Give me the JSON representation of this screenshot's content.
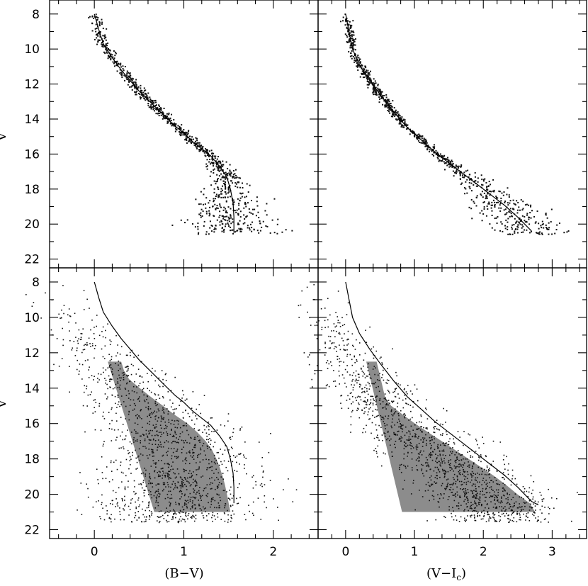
{
  "figure": {
    "xlabel_left": "(B−V)",
    "xlabel_right_main": "(V−I",
    "xlabel_right_sub": "c",
    "xlabel_right_close": ")",
    "ylabel": "V"
  },
  "chart_data": [
    {
      "type": "scatter",
      "panel": "top-left",
      "xlabel": "",
      "ylabel": "V",
      "xlim": [
        -0.5,
        2.5
      ],
      "ylim": [
        22.5,
        7.2
      ],
      "y_inverted": true,
      "y_ticks": [
        8,
        10,
        12,
        14,
        16,
        18,
        20,
        22
      ],
      "sequence_line": {
        "x": [
          0.0,
          0.05,
          0.1,
          0.2,
          0.3,
          0.4,
          0.5,
          0.6,
          0.7,
          0.8,
          0.9,
          1.0,
          1.1,
          1.2,
          1.3,
          1.4,
          1.48,
          1.52,
          1.55,
          1.56,
          1.56
        ],
        "y": [
          8.0,
          8.9,
          9.7,
          10.5,
          11.2,
          11.8,
          12.4,
          12.9,
          13.4,
          13.9,
          14.4,
          14.8,
          15.3,
          15.7,
          16.1,
          16.7,
          17.3,
          18.0,
          18.8,
          19.6,
          20.5
        ]
      },
      "scatter_density": "stars clustered tightly along the sequence line from V=8 to V=16, broadening into a dense clump between B-V 1.2 and 2.0 at V 17-20.5"
    },
    {
      "type": "scatter",
      "panel": "top-right",
      "xlabel": "",
      "ylabel": "",
      "xlim": [
        -0.4,
        3.5
      ],
      "ylim": [
        22.5,
        7.2
      ],
      "y_inverted": true,
      "sequence_line": {
        "x": [
          0.0,
          0.05,
          0.1,
          0.2,
          0.35,
          0.5,
          0.7,
          0.9,
          1.1,
          1.3,
          1.5,
          1.7,
          1.9,
          2.1,
          2.3,
          2.5,
          2.7
        ],
        "y": [
          8.0,
          9.0,
          10.0,
          10.9,
          11.8,
          12.6,
          13.6,
          14.5,
          15.2,
          15.9,
          16.5,
          17.1,
          17.7,
          18.3,
          18.9,
          19.6,
          20.4
        ]
      },
      "scatter_density": "stars clustered tightly along the sequence line, widening toward V-Ic 2.2-3.0 at V 18-20.8"
    },
    {
      "type": "scatter",
      "panel": "bottom-left",
      "xlabel": "(B−V)",
      "ylabel": "V",
      "xlim": [
        -0.5,
        2.5
      ],
      "ylim": [
        22.5,
        7.2
      ],
      "y_inverted": true,
      "x_ticks": [
        0,
        1,
        2
      ],
      "y_ticks": [
        8,
        10,
        12,
        14,
        16,
        18,
        20,
        22
      ],
      "sequence_line": {
        "x": [
          0.0,
          0.05,
          0.1,
          0.2,
          0.3,
          0.4,
          0.5,
          0.6,
          0.7,
          0.8,
          0.9,
          1.0,
          1.1,
          1.2,
          1.3,
          1.4,
          1.48,
          1.52,
          1.55,
          1.56,
          1.56
        ],
        "y": [
          8.0,
          8.9,
          9.7,
          10.5,
          11.2,
          11.8,
          12.4,
          12.9,
          13.4,
          13.9,
          14.4,
          14.8,
          15.3,
          15.7,
          16.1,
          16.7,
          17.3,
          18.0,
          18.8,
          19.6,
          20.5
        ]
      },
      "scatter_density": "broad field-star cloud bounded on the right by the sequence, densest between B-V 0.6 and 1.5 at V 15-21.5, sparse points out to V 8"
    },
    {
      "type": "scatter",
      "panel": "bottom-right",
      "xlabel": "(V−Ic)",
      "ylabel": "",
      "xlim": [
        -0.4,
        3.5
      ],
      "ylim": [
        22.5,
        7.2
      ],
      "y_inverted": true,
      "x_ticks": [
        0,
        1,
        2,
        3
      ],
      "sequence_line": {
        "x": [
          0.0,
          0.05,
          0.1,
          0.2,
          0.35,
          0.5,
          0.7,
          0.9,
          1.1,
          1.3,
          1.5,
          1.7,
          1.9,
          2.1,
          2.3,
          2.5,
          2.7,
          2.8
        ],
        "y": [
          8.0,
          9.0,
          10.0,
          10.9,
          11.8,
          12.6,
          13.6,
          14.5,
          15.2,
          15.9,
          16.5,
          17.1,
          17.7,
          18.3,
          18.9,
          19.6,
          20.4,
          20.6
        ]
      },
      "scatter_density": "broad field-star cloud left of the sequence, densest between V-Ic 0.7 and 2.2 at V 15-21.5"
    }
  ]
}
